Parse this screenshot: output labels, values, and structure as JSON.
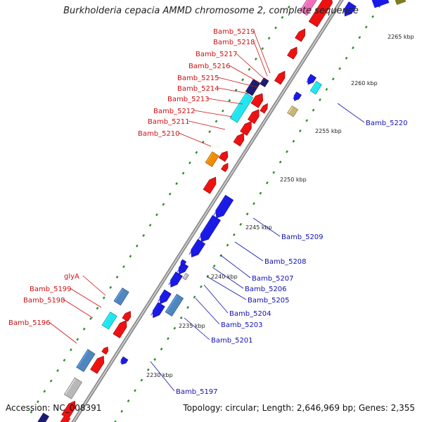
{
  "title": "Burkholderia cepacia AMMD chromosome 2, complete sequence",
  "accession": "Accession: NC_008391",
  "summary": "Topology: circular; Length: 2,646,969 bp; Genes: 2,355",
  "colors": {
    "forward_red": "#ee1111",
    "reverse_blue": "#1a1ae6",
    "cyan": "#22e5f0",
    "steel_blue": "#4f86c0",
    "navy": "#1c1c70",
    "orange": "#f08c0c",
    "khaki": "#c8b878",
    "gray": "#b8b8b8",
    "pink": "#f070b8",
    "backbone": "#8c8c8c",
    "tick_green": "#2c8c2c",
    "label_red": "#d01010",
    "label_blue": "#1010b0"
  },
  "scale_labels": [
    "2230 kbp",
    "2235 kbp",
    "2240 kbp",
    "2245 kbp",
    "2250 kbp",
    "2255 kbp",
    "2260 kbp",
    "2265 kbp"
  ],
  "left_labels": [
    "Bamb_5219",
    "Bamb_5218",
    "Bamb_5217",
    "Bamb_5216",
    "Bamb_5215",
    "Bamb_5214",
    "Bamb_5213",
    "Bamb_5212",
    "Bamb_5211",
    "Bamb_5210",
    "glyA",
    "Bamb_5199",
    "Bamb_5198",
    "Bamb_5196"
  ],
  "right_labels": [
    "Bamb_5220",
    "Bamb_5209",
    "Bamb_5208",
    "Bamb_5207",
    "Bamb_5206",
    "Bamb_5205",
    "Bamb_5204",
    "Bamb_5203",
    "Bamb_5201",
    "Bamb_5197"
  ]
}
